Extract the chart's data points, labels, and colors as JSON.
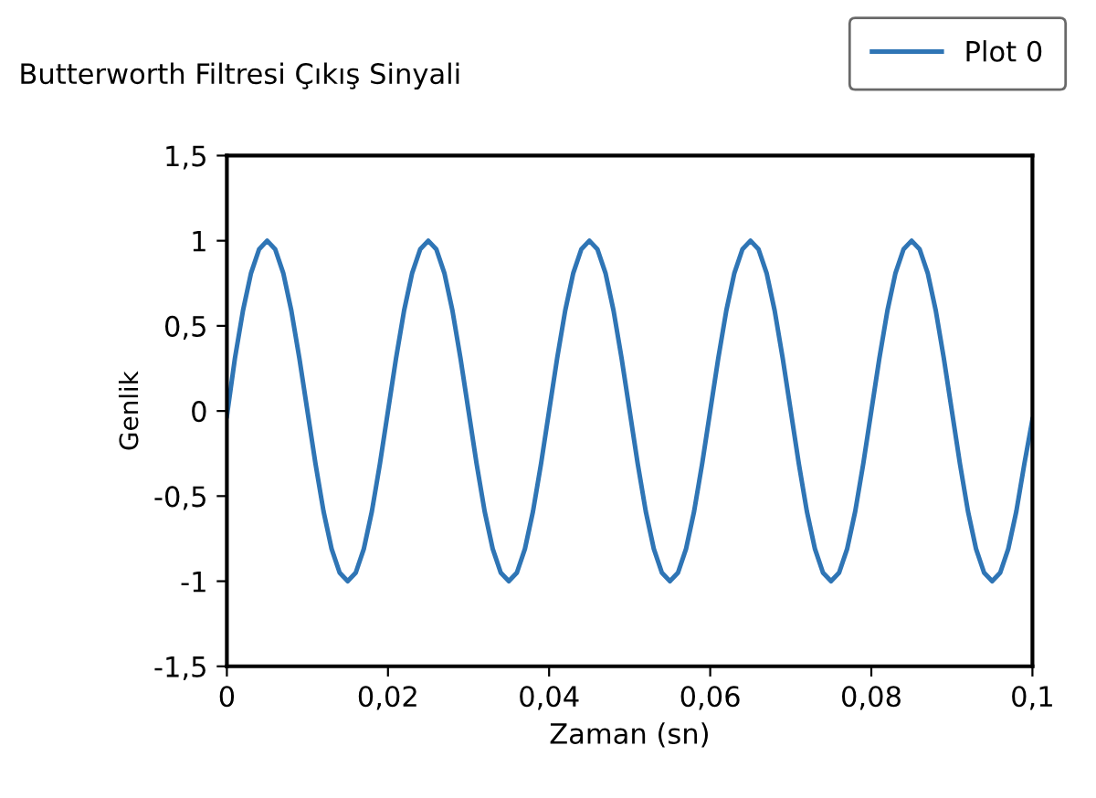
{
  "chart_data": {
    "type": "line",
    "title": "Butterworth Filtresi Çıkış Sinyali",
    "xlabel": "Zaman (sn)",
    "ylabel": "Genlik",
    "x": [
      0,
      0.001,
      0.002,
      0.003,
      0.004,
      0.005,
      0.006,
      0.007,
      0.008,
      0.009,
      0.01,
      0.011,
      0.012,
      0.013,
      0.014,
      0.015,
      0.016,
      0.017,
      0.018,
      0.019,
      0.02,
      0.021,
      0.022,
      0.023,
      0.024,
      0.025,
      0.026,
      0.027,
      0.028,
      0.029,
      0.03,
      0.031,
      0.032,
      0.033,
      0.034,
      0.035,
      0.036,
      0.037,
      0.038,
      0.039,
      0.04,
      0.041,
      0.042,
      0.043,
      0.044,
      0.045,
      0.046,
      0.047,
      0.048,
      0.049,
      0.05,
      0.051,
      0.052,
      0.053,
      0.054,
      0.055,
      0.056,
      0.057,
      0.058,
      0.059,
      0.06,
      0.061,
      0.062,
      0.063,
      0.064,
      0.065,
      0.066,
      0.067,
      0.068,
      0.069,
      0.07,
      0.071,
      0.072,
      0.073,
      0.074,
      0.075,
      0.076,
      0.077,
      0.078,
      0.079,
      0.08,
      0.081,
      0.082,
      0.083,
      0.084,
      0.085,
      0.086,
      0.087,
      0.088,
      0.089,
      0.09,
      0.091,
      0.092,
      0.093,
      0.094,
      0.095,
      0.096,
      0.097,
      0.098,
      0.099,
      0.1
    ],
    "series": [
      {
        "name": "Plot 0",
        "color": "#2f75b5",
        "values": [
          -0.03,
          0.31,
          0.59,
          0.81,
          0.95,
          1,
          0.95,
          0.81,
          0.59,
          0.31,
          0,
          -0.31,
          -0.59,
          -0.81,
          -0.95,
          -1,
          -0.95,
          -0.81,
          -0.59,
          -0.31,
          0,
          0.31,
          0.59,
          0.81,
          0.95,
          1,
          0.95,
          0.81,
          0.59,
          0.31,
          0,
          -0.31,
          -0.59,
          -0.81,
          -0.95,
          -1,
          -0.95,
          -0.81,
          -0.59,
          -0.31,
          0,
          0.31,
          0.59,
          0.81,
          0.95,
          1,
          0.95,
          0.81,
          0.59,
          0.31,
          0,
          -0.31,
          -0.59,
          -0.81,
          -0.95,
          -1,
          -0.95,
          -0.81,
          -0.59,
          -0.31,
          0,
          0.31,
          0.59,
          0.81,
          0.95,
          1,
          0.95,
          0.81,
          0.59,
          0.31,
          0,
          -0.31,
          -0.59,
          -0.81,
          -0.95,
          -1,
          -0.95,
          -0.81,
          -0.59,
          -0.31,
          0,
          0.31,
          0.59,
          0.81,
          0.95,
          1,
          0.95,
          0.81,
          0.59,
          0.31,
          0,
          -0.31,
          -0.59,
          -0.81,
          -0.95,
          -1,
          -0.95,
          -0.81,
          -0.59,
          -0.31,
          -0.05
        ]
      }
    ],
    "xlim": [
      0,
      0.1
    ],
    "xticks": [
      {
        "value": 0,
        "label": "0"
      },
      {
        "value": 0.02,
        "label": "0,02"
      },
      {
        "value": 0.04,
        "label": "0,04"
      },
      {
        "value": 0.06,
        "label": "0,06"
      },
      {
        "value": 0.08,
        "label": "0,08"
      },
      {
        "value": 0.1,
        "label": "0,1"
      }
    ],
    "ylim": [
      -1.5,
      1.5
    ],
    "yticks": [
      {
        "value": -1.5,
        "label": "-1,5"
      },
      {
        "value": -1,
        "label": "-1"
      },
      {
        "value": -0.5,
        "label": "-0,5"
      },
      {
        "value": 0,
        "label": "0"
      },
      {
        "value": 0.5,
        "label": "0,5"
      },
      {
        "value": 1,
        "label": "1"
      },
      {
        "value": 1.5,
        "label": "1,5"
      }
    ],
    "grid": false,
    "legend": "top right",
    "marker": "none",
    "line_style": "solid"
  }
}
